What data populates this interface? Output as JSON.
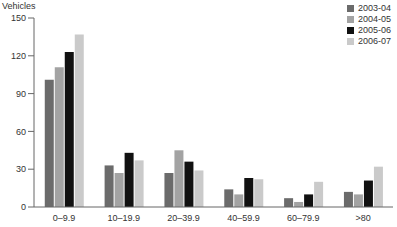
{
  "chart_data": {
    "type": "bar",
    "y_label": "Vehicles",
    "categories": [
      "0–9.9",
      "10–19.9",
      "20–39.9",
      "40–59.9",
      "60–79.9",
      ">80"
    ],
    "series": [
      {
        "name": "2003-04",
        "color": "#6b6b6b",
        "values": [
          101,
          33,
          27,
          14,
          7,
          12
        ]
      },
      {
        "name": "2004-05",
        "color": "#a3a3a3",
        "values": [
          111,
          27,
          45,
          10,
          4,
          10
        ]
      },
      {
        "name": "2005-06",
        "color": "#111111",
        "values": [
          123,
          43,
          36,
          23,
          10,
          21
        ]
      },
      {
        "name": "2006-07",
        "color": "#cacaca",
        "values": [
          137,
          37,
          29,
          22,
          20,
          32
        ]
      }
    ],
    "ylim": [
      0,
      150
    ],
    "yticks": [
      0,
      30,
      60,
      90,
      120,
      150
    ],
    "grid": false,
    "legend": "top-right"
  }
}
